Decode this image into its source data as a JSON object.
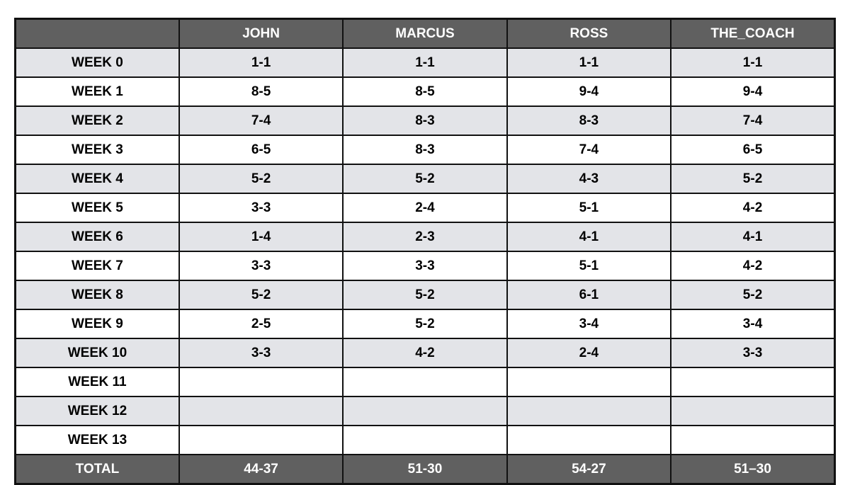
{
  "headers": [
    "",
    "JOHN",
    "MARCUS",
    "ROSS",
    "THE_COACH"
  ],
  "rows": [
    {
      "label": "WEEK 0",
      "values": [
        "1-1",
        "1-1",
        "1-1",
        "1-1"
      ]
    },
    {
      "label": "WEEK 1",
      "values": [
        "8-5",
        "8-5",
        "9-4",
        "9-4"
      ]
    },
    {
      "label": "WEEK 2",
      "values": [
        "7-4",
        "8-3",
        "8-3",
        "7-4"
      ]
    },
    {
      "label": "WEEK 3",
      "values": [
        "6-5",
        "8-3",
        "7-4",
        "6-5"
      ]
    },
    {
      "label": "WEEK 4",
      "values": [
        "5-2",
        "5-2",
        "4-3",
        "5-2"
      ]
    },
    {
      "label": "WEEK 5",
      "values": [
        "3-3",
        "2-4",
        "5-1",
        "4-2"
      ]
    },
    {
      "label": "WEEK 6",
      "values": [
        "1-4",
        "2-3",
        "4-1",
        "4-1"
      ]
    },
    {
      "label": "WEEK 7",
      "values": [
        "3-3",
        "3-3",
        "5-1",
        "4-2"
      ]
    },
    {
      "label": "WEEK 8",
      "values": [
        "5-2",
        "5-2",
        "6-1",
        "5-2"
      ]
    },
    {
      "label": "WEEK 9",
      "values": [
        "2-5",
        "5-2",
        "3-4",
        "3-4"
      ]
    },
    {
      "label": "WEEK 10",
      "values": [
        "3-3",
        "4-2",
        "2-4",
        "3-3"
      ]
    },
    {
      "label": "WEEK 11",
      "values": [
        "",
        "",
        "",
        ""
      ]
    },
    {
      "label": "WEEK 12",
      "values": [
        "",
        "",
        "",
        ""
      ]
    },
    {
      "label": "WEEK 13",
      "values": [
        "",
        "",
        "",
        ""
      ]
    }
  ],
  "total": {
    "label": "TOTAL",
    "values": [
      "44-37",
      "51-30",
      "54-27",
      "51–30"
    ]
  },
  "colors": {
    "header_bg": "#606060",
    "stripe_bg": "#e3e4e8",
    "border": "#111111"
  }
}
